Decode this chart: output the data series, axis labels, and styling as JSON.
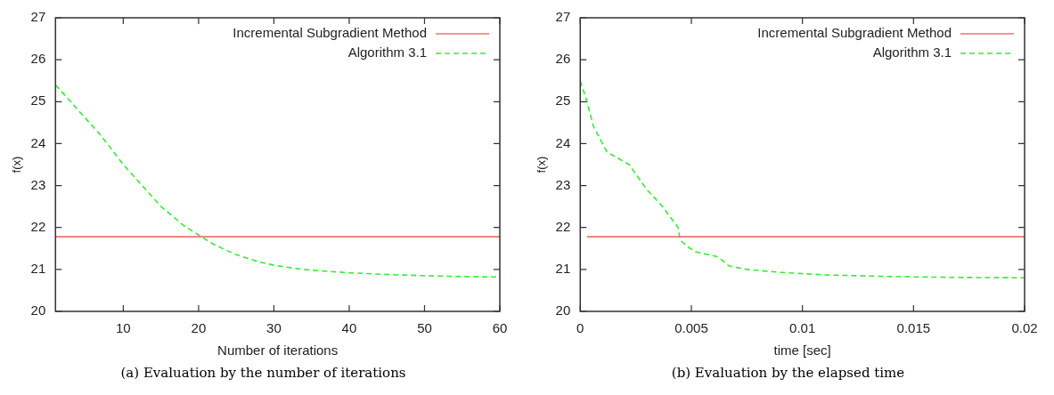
{
  "chart_data": [
    {
      "type": "line",
      "xlabel": "Number of iterations",
      "ylabel": "f(x)",
      "xlim": [
        1,
        60
      ],
      "xticks": [
        10,
        20,
        30,
        40,
        50,
        60
      ],
      "ylim": [
        20,
        27
      ],
      "yticks": [
        20,
        21,
        22,
        23,
        24,
        25,
        26,
        27
      ],
      "grid": false,
      "legend": "top right",
      "marker": "none",
      "series": [
        {
          "name": "Incremental Subgradient Method",
          "color": "#f07070",
          "line_style": "solid",
          "x": [
            1,
            60
          ],
          "values": [
            21.78,
            21.78
          ]
        },
        {
          "name": "Algorithm 3.1",
          "color": "#33ee33",
          "line_style": "dashed",
          "x": [
            1,
            3,
            5,
            7,
            10,
            13,
            15,
            18,
            20,
            22,
            25,
            28,
            30,
            33,
            35,
            40,
            45,
            50,
            55,
            60
          ],
          "values": [
            25.4,
            25.0,
            24.6,
            24.2,
            23.5,
            22.9,
            22.5,
            22.05,
            21.82,
            21.6,
            21.35,
            21.18,
            21.1,
            21.02,
            20.98,
            20.92,
            20.88,
            20.85,
            20.83,
            20.82
          ]
        }
      ],
      "annotations": [
        "(a) Evaluation by the number of iterations"
      ]
    },
    {
      "type": "line",
      "xlabel": "time [sec]",
      "ylabel": "f(x)",
      "xlim": [
        0,
        0.02
      ],
      "xticks": [
        0,
        0.005,
        0.01,
        0.015,
        0.02
      ],
      "ylim": [
        20,
        27
      ],
      "yticks": [
        20,
        21,
        22,
        23,
        24,
        25,
        26,
        27
      ],
      "grid": false,
      "legend": "top right",
      "marker": "none",
      "series": [
        {
          "name": "Incremental Subgradient Method",
          "color": "#f07070",
          "line_style": "solid",
          "x": [
            0.0003,
            0.02
          ],
          "values": [
            21.78,
            21.78
          ]
        },
        {
          "name": "Algorithm 3.1",
          "color": "#33ee33",
          "line_style": "dashed",
          "x": [
            0,
            0.0003,
            0.0006,
            0.0012,
            0.0022,
            0.003,
            0.0037,
            0.0044,
            0.0045,
            0.0048,
            0.0052,
            0.0062,
            0.0067,
            0.0075,
            0.009,
            0.011,
            0.014,
            0.017,
            0.02
          ],
          "values": [
            25.5,
            25.0,
            24.4,
            23.8,
            23.5,
            22.9,
            22.5,
            22.0,
            21.7,
            21.55,
            21.42,
            21.3,
            21.08,
            21.0,
            20.93,
            20.87,
            20.83,
            20.81,
            20.8
          ]
        }
      ],
      "annotations": [
        "(b) Evaluation by the elapsed time"
      ]
    }
  ]
}
